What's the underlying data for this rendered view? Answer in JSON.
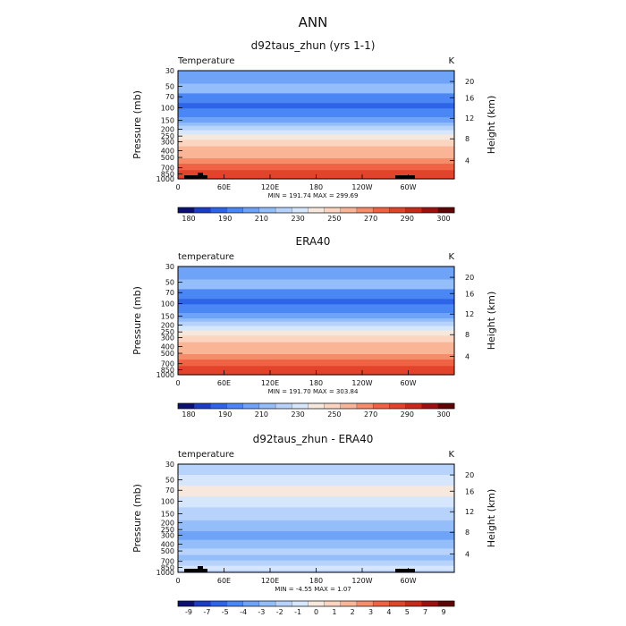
{
  "figure": {
    "title": "ANN"
  },
  "palettes": {
    "abs": [
      "#0a1173",
      "#1a3dc4",
      "#2e64e8",
      "#4b86f5",
      "#6ea3f7",
      "#94befa",
      "#b7d3fb",
      "#d6e6fc",
      "#f6e8dc",
      "#fbd5bf",
      "#f9b596",
      "#f58c6a",
      "#ef6344",
      "#e4432b",
      "#c92919",
      "#9a1110",
      "#5e0606"
    ],
    "diff": [
      "#0a1173",
      "#1a3dc4",
      "#2e64e8",
      "#4b86f5",
      "#6ea3f7",
      "#94befa",
      "#b7d3fb",
      "#d6e6fc",
      "#f6e8dc",
      "#fbd5bf",
      "#f9b596",
      "#f58c6a",
      "#ef6344",
      "#e4432b",
      "#c92919",
      "#9a1110",
      "#5e0606"
    ]
  },
  "chart_data": [
    {
      "type": "heatmap",
      "title": "d92taus_zhun (yrs 1-1)",
      "variable_label": "Temperature",
      "units": "K",
      "ylabel": "Pressure (mb)",
      "ylabel_right": "Height (km)",
      "xticks": [
        "0",
        "60E",
        "120E",
        "180",
        "120W",
        "60W"
      ],
      "yticks": [
        "30",
        "50",
        "70",
        "100",
        "150",
        "200",
        "250",
        "300",
        "400",
        "500",
        "700",
        "850",
        "1000"
      ],
      "yticks_right": [
        "20",
        "16",
        "12",
        "8",
        "4"
      ],
      "stats": "MIN = 191.74   MAX = 299.69",
      "colorbar_labels": [
        "180",
        "190",
        "210",
        "230",
        "250",
        "270",
        "290",
        "300"
      ],
      "palette": "abs",
      "ylim_mb": [
        1000,
        30
      ],
      "bands_from_top": [
        4,
        5,
        3,
        2,
        3,
        4,
        5,
        6,
        7,
        8,
        9,
        10,
        10,
        11,
        12,
        13
      ],
      "band_fraction": [
        0.12,
        0.09,
        0.09,
        0.05,
        0.08,
        0.05,
        0.03,
        0.04,
        0.04,
        0.05,
        0.06,
        0.05,
        0.06,
        0.05,
        0.06,
        0.08
      ]
    },
    {
      "type": "heatmap",
      "title": "ERA40",
      "variable_label": "temperature",
      "units": "K",
      "ylabel": "Pressure (mb)",
      "ylabel_right": "Height (km)",
      "xticks": [
        "0",
        "60E",
        "120E",
        "180",
        "120W",
        "60W"
      ],
      "yticks": [
        "30",
        "50",
        "70",
        "100",
        "150",
        "200",
        "250",
        "300",
        "400",
        "500",
        "700",
        "850",
        "1000"
      ],
      "yticks_right": [
        "20",
        "16",
        "12",
        "8",
        "4"
      ],
      "stats": "MIN = 191.70   MAX = 303.84",
      "colorbar_labels": [
        "180",
        "190",
        "210",
        "230",
        "250",
        "270",
        "290",
        "300"
      ],
      "palette": "abs",
      "ylim_mb": [
        1000,
        30
      ],
      "bands_from_top": [
        4,
        5,
        3,
        2,
        3,
        4,
        5,
        6,
        7,
        8,
        9,
        10,
        10,
        11,
        12,
        13
      ],
      "band_fraction": [
        0.12,
        0.09,
        0.09,
        0.05,
        0.08,
        0.05,
        0.03,
        0.04,
        0.04,
        0.05,
        0.06,
        0.05,
        0.06,
        0.05,
        0.06,
        0.08
      ]
    },
    {
      "type": "heatmap",
      "title": "d92taus_zhun - ERA40",
      "variable_label": "temperature",
      "units": "K",
      "ylabel": "Pressure (mb)",
      "ylabel_right": "Height (km)",
      "xticks": [
        "0",
        "60E",
        "120E",
        "180",
        "120W",
        "60W"
      ],
      "yticks": [
        "30",
        "50",
        "70",
        "100",
        "150",
        "200",
        "250",
        "300",
        "400",
        "500",
        "700",
        "850",
        "1000"
      ],
      "yticks_right": [
        "20",
        "16",
        "12",
        "8",
        "4"
      ],
      "stats": "MIN =    -4.55   MAX =    1.07",
      "colorbar_labels": [
        "-9",
        "-7",
        "-5",
        "-4",
        "-3",
        "-2",
        "-1",
        "0",
        "1",
        "2",
        "3",
        "4",
        "5",
        "7",
        "9"
      ],
      "palette": "diff",
      "ylim_mb": [
        1000,
        30
      ],
      "bands_from_top": [
        6,
        7,
        8,
        7,
        6,
        5,
        4,
        5,
        6,
        5,
        6,
        7,
        6
      ],
      "band_fraction": [
        0.1,
        0.1,
        0.1,
        0.1,
        0.12,
        0.1,
        0.08,
        0.08,
        0.06,
        0.05,
        0.05,
        0.04,
        0.02
      ]
    }
  ]
}
